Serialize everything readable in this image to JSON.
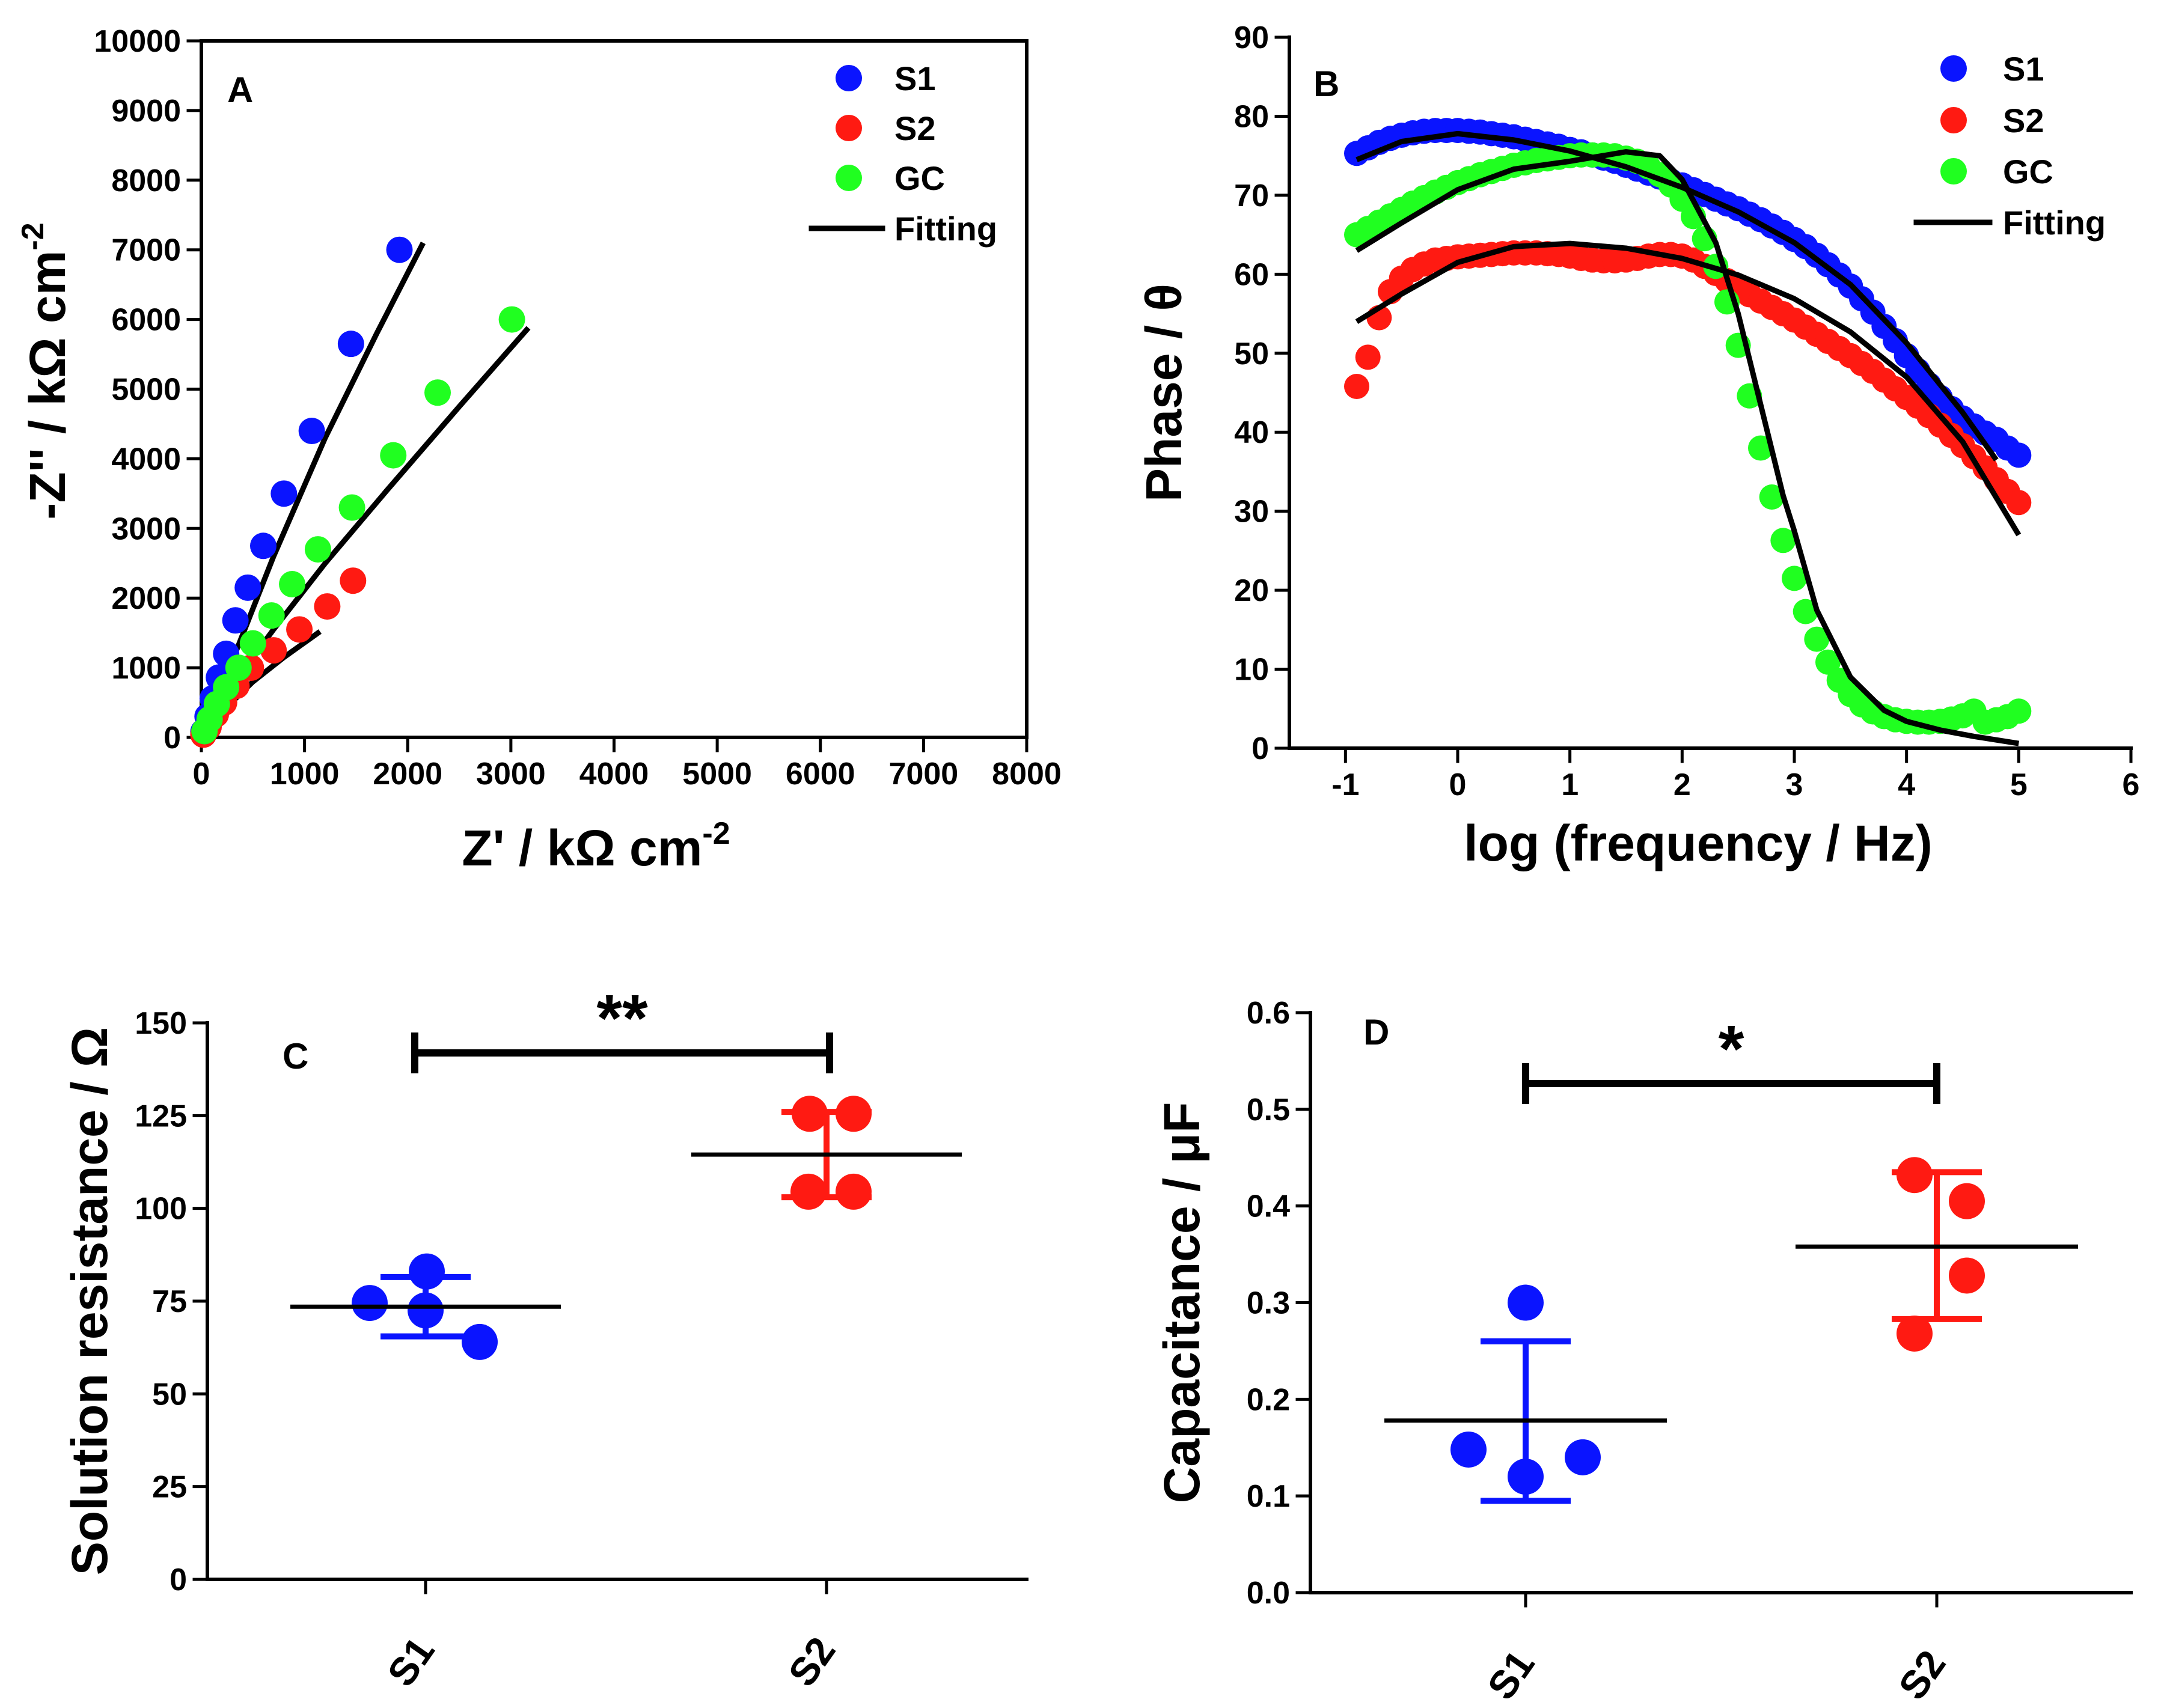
{
  "chart_data": [
    {
      "panel": "A",
      "type": "scatter",
      "xlabel": "Z' / kΩ cm",
      "xlabel_sup": "-2",
      "ylabel": "-Z'' / kΩ cm",
      "ylabel_sup": "-2",
      "xlim": [
        0,
        8000
      ],
      "ylim": [
        0,
        10000
      ],
      "xticks": [
        "0",
        "1000",
        "2000",
        "3000",
        "4000",
        "5000",
        "6000",
        "7000",
        "8000"
      ],
      "yticks": [
        "0",
        "1000",
        "2000",
        "3000",
        "4000",
        "5000",
        "6000",
        "7000",
        "8000",
        "9000",
        "10000"
      ],
      "legend": [
        "S1",
        "S2",
        "GC",
        "Fitting"
      ],
      "series": [
        {
          "name": "S1",
          "color": "#0a14ff",
          "x": [
            20,
            60,
            110,
            170,
            240,
            330,
            450,
            600,
            800,
            1070,
            1450,
            1920
          ],
          "y": [
            80,
            300,
            560,
            860,
            1200,
            1680,
            2150,
            2750,
            3500,
            4400,
            5650,
            7000
          ]
        },
        {
          "name": "S2",
          "color": "#ff1a12",
          "x": [
            20,
            70,
            140,
            220,
            340,
            480,
            700,
            950,
            1220,
            1470
          ],
          "y": [
            40,
            150,
            330,
            500,
            740,
            1000,
            1250,
            1550,
            1880,
            2250
          ]
        },
        {
          "name": "GC",
          "color": "#20ff20",
          "x": [
            30,
            80,
            150,
            240,
            360,
            500,
            680,
            880,
            1130,
            1460,
            1860,
            2290,
            3010
          ],
          "y": [
            90,
            260,
            480,
            720,
            1000,
            1350,
            1750,
            2200,
            2700,
            3300,
            4050,
            4950,
            6000
          ]
        }
      ],
      "fits": [
        {
          "name": "S1",
          "x": [
            0,
            300,
            700,
            1200,
            1700,
            2150
          ],
          "y": [
            0,
            1100,
            2600,
            4300,
            5800,
            7100
          ]
        },
        {
          "name": "S2",
          "x": [
            0,
            200,
            500,
            800,
            1150
          ],
          "y": [
            0,
            370,
            800,
            1150,
            1520
          ]
        },
        {
          "name": "GC",
          "x": [
            0,
            300,
            700,
            1200,
            1800,
            2500,
            3170
          ],
          "y": [
            0,
            750,
            1550,
            2500,
            3550,
            4750,
            5880
          ]
        }
      ]
    },
    {
      "panel": "B",
      "type": "scatter",
      "xlabel": "log (frequency / Hz)",
      "ylabel": "Phase / θ",
      "xlim": [
        -1.5,
        6
      ],
      "ylim": [
        0,
        90
      ],
      "xticks": [
        "-1",
        "0",
        "1",
        "2",
        "3",
        "4",
        "5",
        "6"
      ],
      "yticks": [
        "0",
        "10",
        "20",
        "30",
        "40",
        "50",
        "60",
        "70",
        "80",
        "90"
      ],
      "legend": [
        "S1",
        "S2",
        "GC",
        "Fitting"
      ],
      "series": [
        {
          "name": "S1",
          "color": "#0a14ff",
          "x": [
            -0.9,
            -0.8,
            -0.7,
            -0.6,
            -0.5,
            -0.4,
            -0.3,
            -0.2,
            -0.1,
            0,
            0.1,
            0.2,
            0.3,
            0.4,
            0.5,
            0.6,
            0.7,
            0.8,
            0.9,
            1,
            1.1,
            1.2,
            1.3,
            1.4,
            1.5,
            1.6,
            1.7,
            1.8,
            1.9,
            2,
            2.1,
            2.2,
            2.3,
            2.4,
            2.5,
            2.6,
            2.7,
            2.8,
            2.9,
            3,
            3.1,
            3.2,
            3.3,
            3.4,
            3.5,
            3.6,
            3.7,
            3.8,
            3.9,
            4,
            4.1,
            4.2,
            4.3,
            4.4,
            4.5,
            4.6,
            4.7,
            4.8,
            4.9,
            5
          ],
          "y": [
            75.3,
            76,
            76.7,
            77.2,
            77.6,
            77.9,
            78.1,
            78.2,
            78.2,
            78.2,
            78.1,
            78,
            77.8,
            77.6,
            77.4,
            77.1,
            76.8,
            76.5,
            76.2,
            75.8,
            75.5,
            75.1,
            74.7,
            74.3,
            73.8,
            73.3,
            72.8,
            72.3,
            71.8,
            71.3,
            70.7,
            70.1,
            69.5,
            68.9,
            68.3,
            67.6,
            66.9,
            66.1,
            65.3,
            64.4,
            63.5,
            62.4,
            61.2,
            59.9,
            58.5,
            56.9,
            55.2,
            53.4,
            51.6,
            49.7,
            47.8,
            46,
            44.4,
            43,
            41.8,
            40.8,
            39.9,
            39.1,
            38,
            37.1
          ]
        },
        {
          "name": "S2",
          "color": "#ff1a12",
          "x": [
            -0.9,
            -0.8,
            -0.7,
            -0.6,
            -0.5,
            -0.4,
            -0.3,
            -0.2,
            -0.1,
            0,
            0.1,
            0.2,
            0.3,
            0.4,
            0.5,
            0.6,
            0.7,
            0.8,
            0.9,
            1,
            1.1,
            1.2,
            1.3,
            1.4,
            1.5,
            1.6,
            1.7,
            1.8,
            1.9,
            2,
            2.1,
            2.2,
            2.3,
            2.4,
            2.5,
            2.6,
            2.7,
            2.8,
            2.9,
            3,
            3.1,
            3.2,
            3.3,
            3.4,
            3.5,
            3.6,
            3.7,
            3.8,
            3.9,
            4,
            4.1,
            4.2,
            4.3,
            4.4,
            4.5,
            4.6,
            4.7,
            4.8,
            4.9,
            5
          ],
          "y": [
            45.8,
            49.5,
            54.5,
            57.8,
            59.5,
            60.6,
            61.3,
            61.8,
            62,
            62.2,
            62.3,
            62.4,
            62.5,
            62.6,
            62.7,
            62.7,
            62.7,
            62.6,
            62.5,
            62.3,
            62,
            61.8,
            61.7,
            61.7,
            61.8,
            62,
            62.3,
            62.5,
            62.5,
            62.3,
            61.8,
            61,
            60.1,
            59.2,
            58.3,
            57.4,
            56.6,
            55.8,
            55,
            54.2,
            53.3,
            52.4,
            51.5,
            50.6,
            49.7,
            48.7,
            47.7,
            46.6,
            45.5,
            44.4,
            43.3,
            42.1,
            40.9,
            39.6,
            38.3,
            36.9,
            35.5,
            34,
            32.5,
            31.1
          ]
        },
        {
          "name": "GC",
          "color": "#20ff20",
          "x": [
            -0.9,
            -0.8,
            -0.7,
            -0.6,
            -0.5,
            -0.4,
            -0.3,
            -0.2,
            -0.1,
            0,
            0.1,
            0.2,
            0.3,
            0.4,
            0.5,
            0.6,
            0.7,
            0.8,
            0.9,
            1,
            1.1,
            1.2,
            1.3,
            1.4,
            1.5,
            1.6,
            1.7,
            1.8,
            1.9,
            2,
            2.1,
            2.2,
            2.3,
            2.4,
            2.5,
            2.6,
            2.7,
            2.8,
            2.9,
            3,
            3.1,
            3.2,
            3.3,
            3.4,
            3.5,
            3.6,
            3.7,
            3.8,
            3.9,
            4,
            4.1,
            4.2,
            4.3,
            4.4,
            4.5,
            4.6,
            4.7,
            4.8,
            4.9,
            5
          ],
          "y": [
            65,
            65.8,
            66.6,
            67.4,
            68.2,
            69,
            69.7,
            70.4,
            71,
            71.6,
            72.1,
            72.6,
            73,
            73.4,
            73.8,
            74.1,
            74.4,
            74.6,
            74.8,
            75,
            75.1,
            75.1,
            75.1,
            75,
            74.7,
            74.3,
            73.6,
            72.6,
            71.3,
            69.5,
            67.3,
            64.5,
            61,
            56.5,
            51,
            44.6,
            38,
            31.8,
            26.3,
            21.5,
            17.3,
            13.8,
            10.9,
            8.6,
            6.8,
            5.5,
            4.6,
            4,
            3.6,
            3.4,
            3.3,
            3.3,
            3.4,
            3.7,
            4.1,
            4.7,
            3.3,
            3.6,
            4,
            4.7
          ]
        }
      ],
      "fits": [
        {
          "name": "S1",
          "x": [
            -0.9,
            -0.5,
            0,
            0.5,
            1,
            1.5,
            2,
            2.5,
            3,
            3.5,
            4,
            4.5,
            4.8
          ],
          "y": [
            74.5,
            76.8,
            77.8,
            77,
            75.6,
            73.6,
            71,
            67.9,
            64,
            58.7,
            51.3,
            42.5,
            36.5
          ]
        },
        {
          "name": "S2",
          "x": [
            -0.9,
            -0.5,
            0,
            0.5,
            1,
            1.5,
            2,
            2.5,
            3,
            3.5,
            4,
            4.5,
            5
          ],
          "y": [
            54,
            57.5,
            61.5,
            63.5,
            63.9,
            63.3,
            62,
            59.9,
            56.9,
            52.7,
            47,
            38.8,
            27
          ]
        },
        {
          "name": "GC",
          "x": [
            -0.9,
            -0.5,
            0,
            0.5,
            1,
            1.5,
            1.8,
            2,
            2.3,
            2.5,
            2.7,
            2.9,
            3,
            3.2,
            3.5,
            3.8,
            4,
            4.3,
            4.6,
            5
          ],
          "y": [
            63,
            66.5,
            70.7,
            73.3,
            74.3,
            75.5,
            75,
            72,
            64,
            55,
            43.5,
            32,
            27.5,
            17.5,
            9,
            4.8,
            3.4,
            2.3,
            1.5,
            0.6
          ]
        }
      ]
    },
    {
      "panel": "C",
      "type": "scatter",
      "xlabel": "",
      "ylabel": "Solution resistance / Ω",
      "ylim": [
        0,
        150
      ],
      "yticks": [
        "0",
        "25",
        "50",
        "75",
        "100",
        "125",
        "150"
      ],
      "categories": [
        "S1",
        "S2"
      ],
      "significance": "**",
      "groups": [
        {
          "name": "S1",
          "color": "#0a14ff",
          "points": [
            74.5,
            83,
            64,
            72.5
          ],
          "mean": 73.5,
          "sd_low": 65.5,
          "sd_high": 81.5
        },
        {
          "name": "S2",
          "color": "#ff1a12",
          "points": [
            125.5,
            125.5,
            104.5,
            104.5
          ],
          "mean": 114.5,
          "sd_low": 103,
          "sd_high": 126
        }
      ]
    },
    {
      "panel": "D",
      "type": "scatter",
      "xlabel": "",
      "ylabel": "Capacitance / μF",
      "ylim": [
        0,
        0.6
      ],
      "yticks": [
        "0.0",
        "0.1",
        "0.2",
        "0.3",
        "0.4",
        "0.5",
        "0.6"
      ],
      "categories": [
        "S1",
        "S2"
      ],
      "significance": "*",
      "groups": [
        {
          "name": "S1",
          "color": "#0a14ff",
          "points": [
            0.3,
            0.148,
            0.12,
            0.14
          ],
          "mean": 0.178,
          "sd_low": 0.095,
          "sd_high": 0.26
        },
        {
          "name": "S2",
          "color": "#ff1a12",
          "points": [
            0.432,
            0.405,
            0.328,
            0.268
          ],
          "mean": 0.358,
          "sd_low": 0.283,
          "sd_high": 0.435
        }
      ]
    }
  ]
}
